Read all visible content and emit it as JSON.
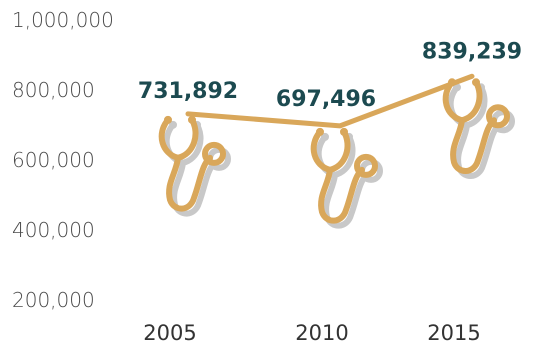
{
  "chart_data": {
    "type": "line",
    "categories": [
      "2005",
      "2010",
      "2015"
    ],
    "values": [
      731892,
      697496,
      839239
    ],
    "value_labels": [
      "731,892",
      "697,496",
      "839,239"
    ],
    "yticks": [
      200000,
      400000,
      600000,
      800000,
      1000000
    ],
    "ytick_labels": [
      "200,000",
      "400,000",
      "600,000",
      "800,000",
      "1,000,000"
    ],
    "ylim": [
      200000,
      1000000
    ],
    "grid": false,
    "line_color": "#d9a75a",
    "label_color": "#1c4a50",
    "marker_icon": "stethoscope-icon"
  }
}
